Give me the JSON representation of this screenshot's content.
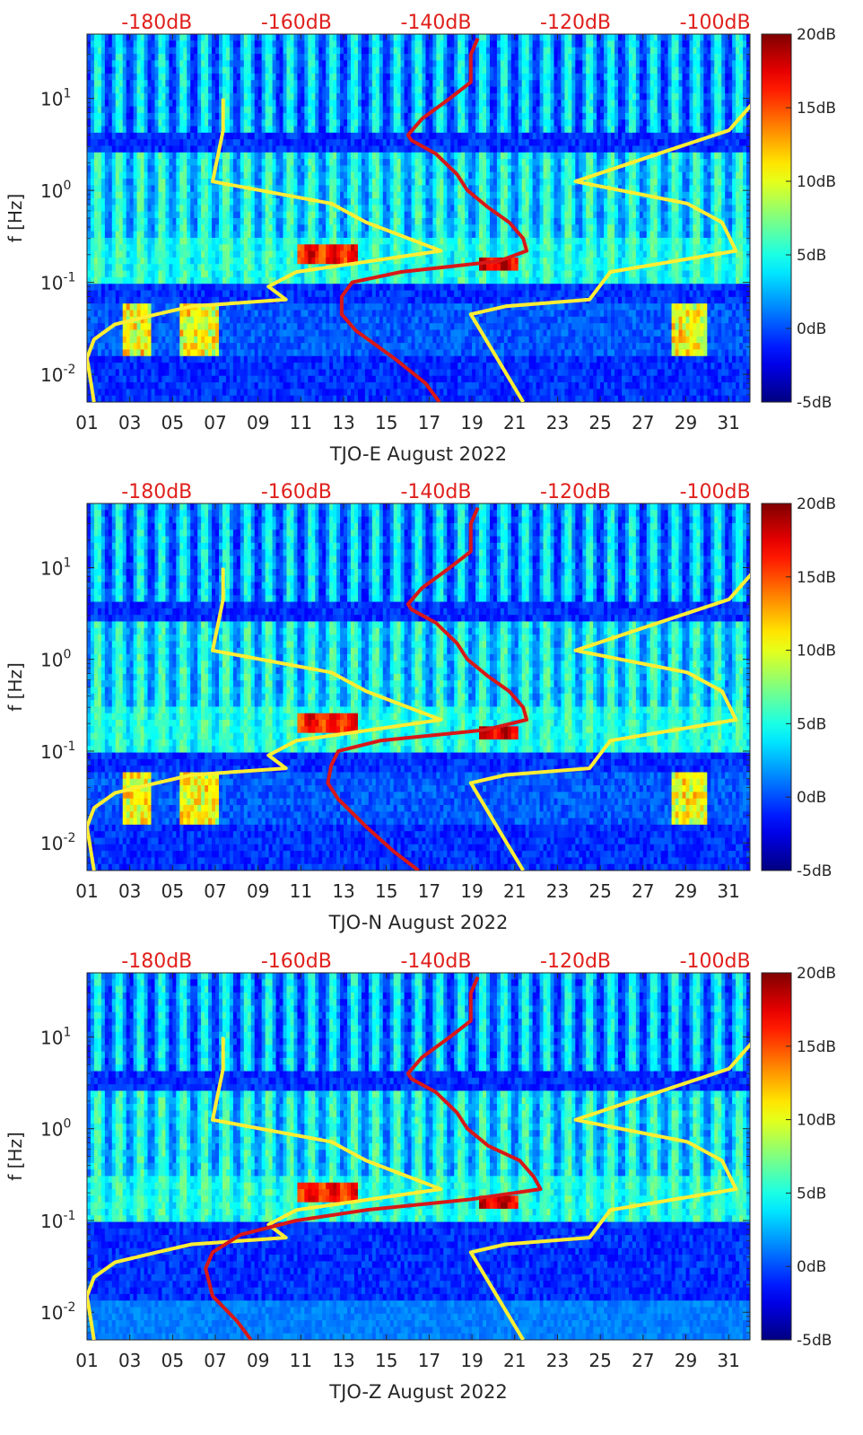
{
  "chart_data": [
    {
      "type": "heatmap",
      "station": "TJO-E",
      "xlabel": "TJO-E August 2022",
      "ylabel": "f [Hz]",
      "x_ticks": [
        "01",
        "03",
        "05",
        "07",
        "09",
        "11",
        "13",
        "15",
        "17",
        "19",
        "21",
        "23",
        "25",
        "27",
        "29",
        "31"
      ],
      "x_range_days": [
        1,
        32
      ],
      "y_scale": "log",
      "y_range_hz": [
        0.005,
        50
      ],
      "y_ticks": [
        {
          "label": "10",
          "exp": "-2"
        },
        {
          "label": "10",
          "exp": "-1"
        },
        {
          "label": "10",
          "exp": "0"
        },
        {
          "label": "10",
          "exp": "1"
        }
      ],
      "top_axis_ticks": [
        "-180dB",
        "-160dB",
        "-140dB",
        "-120dB",
        "-100dB"
      ],
      "top_axis_range_db": [
        -190,
        -95
      ],
      "colorbar": {
        "ticks": [
          "20dB",
          "15dB",
          "10dB",
          "5dB",
          "0dB",
          "-5dB"
        ],
        "range_db": [
          -5,
          20
        ]
      },
      "yellow_curve_low": [
        [
          10,
          -170.5
        ],
        [
          4.5,
          -170.5
        ],
        [
          1.25,
          -172
        ],
        [
          0.72,
          -155
        ],
        [
          0.45,
          -150
        ],
        [
          0.22,
          -139.3
        ],
        [
          0.13,
          -160
        ],
        [
          0.09,
          -164
        ],
        [
          0.065,
          -161.5
        ],
        [
          0.055,
          -175
        ],
        [
          0.045,
          -180
        ],
        [
          0.035,
          -186
        ],
        [
          0.024,
          -189
        ],
        [
          0.015,
          -190
        ],
        [
          0.005,
          -189
        ]
      ],
      "yellow_curve_high": [
        [
          10,
          -94
        ],
        [
          4.5,
          -98
        ],
        [
          3,
          -105
        ],
        [
          1.25,
          -120
        ],
        [
          0.72,
          -104
        ],
        [
          0.45,
          -99
        ],
        [
          0.22,
          -97
        ],
        [
          0.13,
          -115
        ],
        [
          0.065,
          -118
        ],
        [
          0.055,
          -130
        ],
        [
          0.045,
          -135
        ],
        [
          0.005,
          -127.5
        ]
      ],
      "red_curve": [
        [
          45,
          -134
        ],
        [
          30,
          -135
        ],
        [
          20,
          -135
        ],
        [
          15,
          -135
        ],
        [
          10,
          -138
        ],
        [
          6,
          -142
        ],
        [
          4,
          -144
        ],
        [
          3.5,
          -143.5
        ],
        [
          2.5,
          -140
        ],
        [
          1.5,
          -137
        ],
        [
          1,
          -135.5
        ],
        [
          0.65,
          -132.5
        ],
        [
          0.45,
          -129.5
        ],
        [
          0.3,
          -127.5
        ],
        [
          0.22,
          -127
        ],
        [
          0.17,
          -131
        ],
        [
          0.13,
          -145
        ],
        [
          0.1,
          -152
        ],
        [
          0.07,
          -153.5
        ],
        [
          0.045,
          -153.5
        ],
        [
          0.03,
          -151.5
        ],
        [
          0.015,
          -146
        ],
        [
          0.008,
          -141.5
        ],
        [
          0.005,
          -139.5
        ]
      ]
    },
    {
      "type": "heatmap",
      "station": "TJO-N",
      "xlabel": "TJO-N August 2022",
      "ylabel": "f [Hz]",
      "x_ticks": [
        "01",
        "03",
        "05",
        "07",
        "09",
        "11",
        "13",
        "15",
        "17",
        "19",
        "21",
        "23",
        "25",
        "27",
        "29",
        "31"
      ],
      "x_range_days": [
        1,
        32
      ],
      "y_scale": "log",
      "y_range_hz": [
        0.005,
        50
      ],
      "y_ticks": [
        {
          "label": "10",
          "exp": "-2"
        },
        {
          "label": "10",
          "exp": "-1"
        },
        {
          "label": "10",
          "exp": "0"
        },
        {
          "label": "10",
          "exp": "1"
        }
      ],
      "top_axis_ticks": [
        "-180dB",
        "-160dB",
        "-140dB",
        "-120dB",
        "-100dB"
      ],
      "top_axis_range_db": [
        -190,
        -95
      ],
      "colorbar": {
        "ticks": [
          "20dB",
          "15dB",
          "10dB",
          "5dB",
          "0dB",
          "-5dB"
        ],
        "range_db": [
          -5,
          20
        ]
      },
      "yellow_curve_low": [
        [
          10,
          -170.5
        ],
        [
          4.5,
          -170.5
        ],
        [
          1.25,
          -172
        ],
        [
          0.72,
          -155
        ],
        [
          0.45,
          -150
        ],
        [
          0.22,
          -139.3
        ],
        [
          0.13,
          -160
        ],
        [
          0.09,
          -164
        ],
        [
          0.065,
          -161.5
        ],
        [
          0.055,
          -175
        ],
        [
          0.045,
          -180
        ],
        [
          0.035,
          -186
        ],
        [
          0.024,
          -189
        ],
        [
          0.015,
          -190
        ],
        [
          0.005,
          -189
        ]
      ],
      "yellow_curve_high": [
        [
          10,
          -94
        ],
        [
          4.5,
          -98
        ],
        [
          3,
          -105
        ],
        [
          1.25,
          -120
        ],
        [
          0.72,
          -104
        ],
        [
          0.45,
          -99
        ],
        [
          0.22,
          -97
        ],
        [
          0.13,
          -115
        ],
        [
          0.065,
          -118
        ],
        [
          0.055,
          -130
        ],
        [
          0.045,
          -135
        ],
        [
          0.005,
          -127.5
        ]
      ],
      "red_curve": [
        [
          45,
          -134
        ],
        [
          30,
          -135
        ],
        [
          20,
          -135
        ],
        [
          15,
          -135
        ],
        [
          10,
          -138
        ],
        [
          6,
          -142
        ],
        [
          4,
          -144
        ],
        [
          3.5,
          -143.5
        ],
        [
          2.5,
          -140
        ],
        [
          1.5,
          -137
        ],
        [
          1,
          -135.5
        ],
        [
          0.65,
          -132.5
        ],
        [
          0.45,
          -129.5
        ],
        [
          0.3,
          -127.5
        ],
        [
          0.22,
          -127
        ],
        [
          0.17,
          -133
        ],
        [
          0.13,
          -148
        ],
        [
          0.1,
          -154
        ],
        [
          0.07,
          -155
        ],
        [
          0.045,
          -155.5
        ],
        [
          0.03,
          -154
        ],
        [
          0.015,
          -150
        ],
        [
          0.008,
          -146
        ],
        [
          0.005,
          -142.5
        ]
      ]
    },
    {
      "type": "heatmap",
      "station": "TJO-Z",
      "xlabel": "TJO-Z August 2022",
      "ylabel": "f [Hz]",
      "x_ticks": [
        "01",
        "03",
        "05",
        "07",
        "09",
        "11",
        "13",
        "15",
        "17",
        "19",
        "21",
        "23",
        "25",
        "27",
        "29",
        "31"
      ],
      "x_range_days": [
        1,
        32
      ],
      "y_scale": "log",
      "y_range_hz": [
        0.005,
        50
      ],
      "y_ticks": [
        {
          "label": "10",
          "exp": "-2"
        },
        {
          "label": "10",
          "exp": "-1"
        },
        {
          "label": "10",
          "exp": "0"
        },
        {
          "label": "10",
          "exp": "1"
        }
      ],
      "top_axis_ticks": [
        "-180dB",
        "-160dB",
        "-140dB",
        "-120dB",
        "-100dB"
      ],
      "top_axis_range_db": [
        -190,
        -95
      ],
      "colorbar": {
        "ticks": [
          "20dB",
          "15dB",
          "10dB",
          "5dB",
          "0dB",
          "-5dB"
        ],
        "range_db": [
          -5,
          20
        ]
      },
      "yellow_curve_low": [
        [
          10,
          -170.5
        ],
        [
          4.5,
          -170.5
        ],
        [
          1.25,
          -172
        ],
        [
          0.72,
          -155
        ],
        [
          0.45,
          -150
        ],
        [
          0.22,
          -139.3
        ],
        [
          0.13,
          -160
        ],
        [
          0.09,
          -164
        ],
        [
          0.065,
          -161.5
        ],
        [
          0.055,
          -175
        ],
        [
          0.045,
          -180
        ],
        [
          0.035,
          -186
        ],
        [
          0.024,
          -189
        ],
        [
          0.015,
          -190
        ],
        [
          0.005,
          -189
        ]
      ],
      "yellow_curve_high": [
        [
          10,
          -94
        ],
        [
          4.5,
          -98
        ],
        [
          3,
          -105
        ],
        [
          1.25,
          -120
        ],
        [
          0.72,
          -104
        ],
        [
          0.45,
          -99
        ],
        [
          0.22,
          -97
        ],
        [
          0.13,
          -115
        ],
        [
          0.065,
          -118
        ],
        [
          0.055,
          -130
        ],
        [
          0.045,
          -135
        ],
        [
          0.005,
          -127.5
        ]
      ],
      "red_curve": [
        [
          45,
          -134
        ],
        [
          30,
          -135
        ],
        [
          20,
          -135
        ],
        [
          15,
          -135
        ],
        [
          10,
          -138
        ],
        [
          6,
          -142
        ],
        [
          4,
          -144
        ],
        [
          3.5,
          -143.5
        ],
        [
          2.5,
          -140
        ],
        [
          1.5,
          -137
        ],
        [
          1,
          -135.5
        ],
        [
          0.65,
          -132.5
        ],
        [
          0.45,
          -128
        ],
        [
          0.3,
          -126
        ],
        [
          0.22,
          -125
        ],
        [
          0.17,
          -135
        ],
        [
          0.13,
          -150
        ],
        [
          0.1,
          -160
        ],
        [
          0.07,
          -168
        ],
        [
          0.045,
          -172
        ],
        [
          0.03,
          -173
        ],
        [
          0.015,
          -172
        ],
        [
          0.008,
          -168.5
        ],
        [
          0.005,
          -166.5
        ]
      ]
    }
  ],
  "colors": {
    "top_axis_text": "#e0201c",
    "yellow_curve": "#ffee33",
    "red_curve": "#d81818",
    "axis_text": "#262626"
  }
}
